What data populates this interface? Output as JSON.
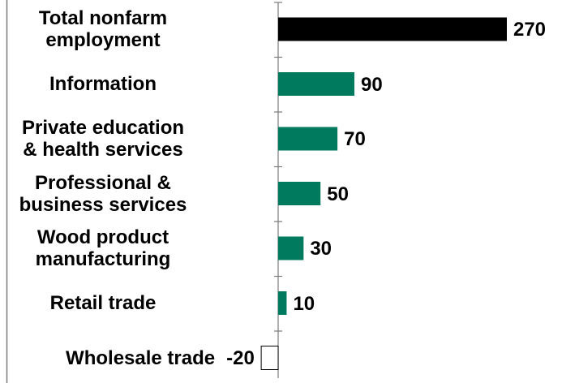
{
  "chart_data": {
    "type": "bar",
    "orientation": "horizontal",
    "title": "",
    "xlabel": "",
    "ylabel": "",
    "categories": [
      "Total nonfarm\nemployment",
      "Information",
      "Private education\n& health services",
      "Professional &\nbusiness services",
      "Wood product\nmanufacturing",
      "Retail trade",
      "Wholesale trade"
    ],
    "values": [
      270,
      90,
      70,
      50,
      30,
      10,
      -20
    ],
    "value_labels": [
      "270",
      "90",
      "70",
      "50",
      "30",
      "10",
      "-20"
    ],
    "bar_colors": [
      "#000000",
      "#007a5e",
      "#007a5e",
      "#007a5e",
      "#007a5e",
      "#007a5e",
      "#ffffff"
    ],
    "grid": false,
    "legend": "none"
  }
}
